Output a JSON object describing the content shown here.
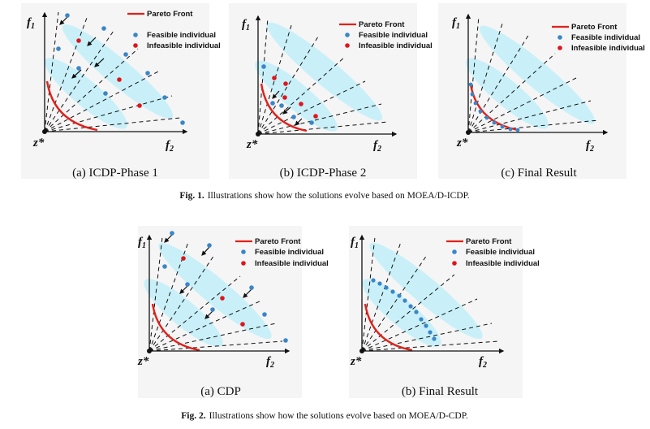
{
  "figure1": {
    "caption_label": "Fig. 1.",
    "caption_text": "Illustrations show how the solutions evolve based on MOEA/D-ICDP.",
    "panels": [
      {
        "caption": "(a) ICDP-Phase 1"
      },
      {
        "caption": "(b) ICDP-Phase 2"
      },
      {
        "caption": "(c) Final Result"
      }
    ]
  },
  "figure2": {
    "caption_label": "Fig. 2.",
    "caption_text": "Illustrations show how the solutions evolve based on MOEA/D-CDP.",
    "panels": [
      {
        "caption": "(a) CDP"
      },
      {
        "caption": "(b) Final Result"
      }
    ]
  },
  "axes": {
    "f1": "f",
    "f1_sub": "1",
    "f2": "f",
    "f2_sub": "2",
    "origin": "z*"
  },
  "legend": {
    "pareto_front": "Pareto Front",
    "feasible": "Feasible individual",
    "infeasible": "Infeasible individual"
  },
  "colors": {
    "pareto": "#e0211b",
    "feasible": "#3a86c8",
    "infeasible": "#e0141b",
    "ellipse": "#c9f0f8",
    "axis": "#111111",
    "panel_bg": "#f5f5f5"
  }
}
